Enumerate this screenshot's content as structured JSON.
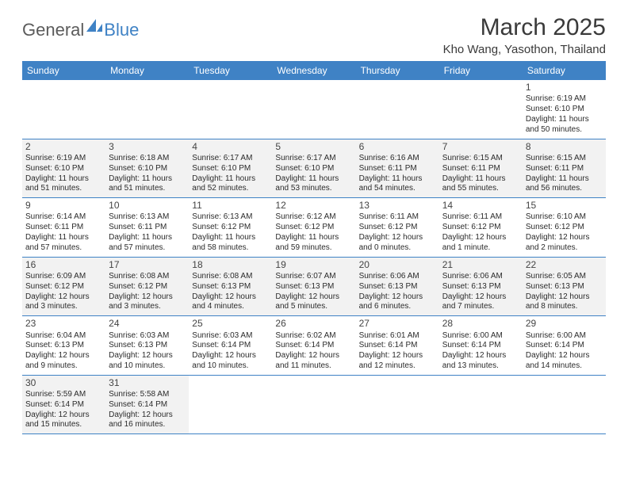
{
  "logo": {
    "text1": "General",
    "text2": "Blue",
    "sail_color": "#3f82c5",
    "text1_color": "#5b5b5b"
  },
  "header": {
    "title": "March 2025",
    "subtitle": "Kho Wang, Yasothon, Thailand",
    "title_color": "#3a3a3a",
    "title_fontsize": 30,
    "subtitle_fontsize": 15
  },
  "style": {
    "header_bg": "#3f82c5",
    "header_fg": "#ffffff",
    "row_divider": "#3f82c5",
    "alt_bg": "#f2f2f2",
    "cell_fontsize": 10,
    "daynum_fontsize": 12
  },
  "day_names": [
    "Sunday",
    "Monday",
    "Tuesday",
    "Wednesday",
    "Thursday",
    "Friday",
    "Saturday"
  ],
  "weeks": [
    [
      {
        "empty": true
      },
      {
        "empty": true
      },
      {
        "empty": true
      },
      {
        "empty": true
      },
      {
        "empty": true
      },
      {
        "empty": true
      },
      {
        "n": "1",
        "sr": "6:19 AM",
        "ss": "6:10 PM",
        "dl": "11 hours and 50 minutes."
      }
    ],
    [
      {
        "n": "2",
        "sr": "6:19 AM",
        "ss": "6:10 PM",
        "dl": "11 hours and 51 minutes."
      },
      {
        "n": "3",
        "sr": "6:18 AM",
        "ss": "6:10 PM",
        "dl": "11 hours and 51 minutes."
      },
      {
        "n": "4",
        "sr": "6:17 AM",
        "ss": "6:10 PM",
        "dl": "11 hours and 52 minutes."
      },
      {
        "n": "5",
        "sr": "6:17 AM",
        "ss": "6:10 PM",
        "dl": "11 hours and 53 minutes."
      },
      {
        "n": "6",
        "sr": "6:16 AM",
        "ss": "6:11 PM",
        "dl": "11 hours and 54 minutes."
      },
      {
        "n": "7",
        "sr": "6:15 AM",
        "ss": "6:11 PM",
        "dl": "11 hours and 55 minutes."
      },
      {
        "n": "8",
        "sr": "6:15 AM",
        "ss": "6:11 PM",
        "dl": "11 hours and 56 minutes."
      }
    ],
    [
      {
        "n": "9",
        "sr": "6:14 AM",
        "ss": "6:11 PM",
        "dl": "11 hours and 57 minutes."
      },
      {
        "n": "10",
        "sr": "6:13 AM",
        "ss": "6:11 PM",
        "dl": "11 hours and 57 minutes."
      },
      {
        "n": "11",
        "sr": "6:13 AM",
        "ss": "6:12 PM",
        "dl": "11 hours and 58 minutes."
      },
      {
        "n": "12",
        "sr": "6:12 AM",
        "ss": "6:12 PM",
        "dl": "11 hours and 59 minutes."
      },
      {
        "n": "13",
        "sr": "6:11 AM",
        "ss": "6:12 PM",
        "dl": "12 hours and 0 minutes."
      },
      {
        "n": "14",
        "sr": "6:11 AM",
        "ss": "6:12 PM",
        "dl": "12 hours and 1 minute."
      },
      {
        "n": "15",
        "sr": "6:10 AM",
        "ss": "6:12 PM",
        "dl": "12 hours and 2 minutes."
      }
    ],
    [
      {
        "n": "16",
        "sr": "6:09 AM",
        "ss": "6:12 PM",
        "dl": "12 hours and 3 minutes."
      },
      {
        "n": "17",
        "sr": "6:08 AM",
        "ss": "6:12 PM",
        "dl": "12 hours and 3 minutes."
      },
      {
        "n": "18",
        "sr": "6:08 AM",
        "ss": "6:13 PM",
        "dl": "12 hours and 4 minutes."
      },
      {
        "n": "19",
        "sr": "6:07 AM",
        "ss": "6:13 PM",
        "dl": "12 hours and 5 minutes."
      },
      {
        "n": "20",
        "sr": "6:06 AM",
        "ss": "6:13 PM",
        "dl": "12 hours and 6 minutes."
      },
      {
        "n": "21",
        "sr": "6:06 AM",
        "ss": "6:13 PM",
        "dl": "12 hours and 7 minutes."
      },
      {
        "n": "22",
        "sr": "6:05 AM",
        "ss": "6:13 PM",
        "dl": "12 hours and 8 minutes."
      }
    ],
    [
      {
        "n": "23",
        "sr": "6:04 AM",
        "ss": "6:13 PM",
        "dl": "12 hours and 9 minutes."
      },
      {
        "n": "24",
        "sr": "6:03 AM",
        "ss": "6:13 PM",
        "dl": "12 hours and 10 minutes."
      },
      {
        "n": "25",
        "sr": "6:03 AM",
        "ss": "6:14 PM",
        "dl": "12 hours and 10 minutes."
      },
      {
        "n": "26",
        "sr": "6:02 AM",
        "ss": "6:14 PM",
        "dl": "12 hours and 11 minutes."
      },
      {
        "n": "27",
        "sr": "6:01 AM",
        "ss": "6:14 PM",
        "dl": "12 hours and 12 minutes."
      },
      {
        "n": "28",
        "sr": "6:00 AM",
        "ss": "6:14 PM",
        "dl": "12 hours and 13 minutes."
      },
      {
        "n": "29",
        "sr": "6:00 AM",
        "ss": "6:14 PM",
        "dl": "12 hours and 14 minutes."
      }
    ],
    [
      {
        "n": "30",
        "sr": "5:59 AM",
        "ss": "6:14 PM",
        "dl": "12 hours and 15 minutes."
      },
      {
        "n": "31",
        "sr": "5:58 AM",
        "ss": "6:14 PM",
        "dl": "12 hours and 16 minutes."
      },
      {
        "empty": true
      },
      {
        "empty": true
      },
      {
        "empty": true
      },
      {
        "empty": true
      },
      {
        "empty": true
      }
    ]
  ],
  "labels": {
    "sunrise": "Sunrise:",
    "sunset": "Sunset:",
    "daylight": "Daylight:"
  }
}
